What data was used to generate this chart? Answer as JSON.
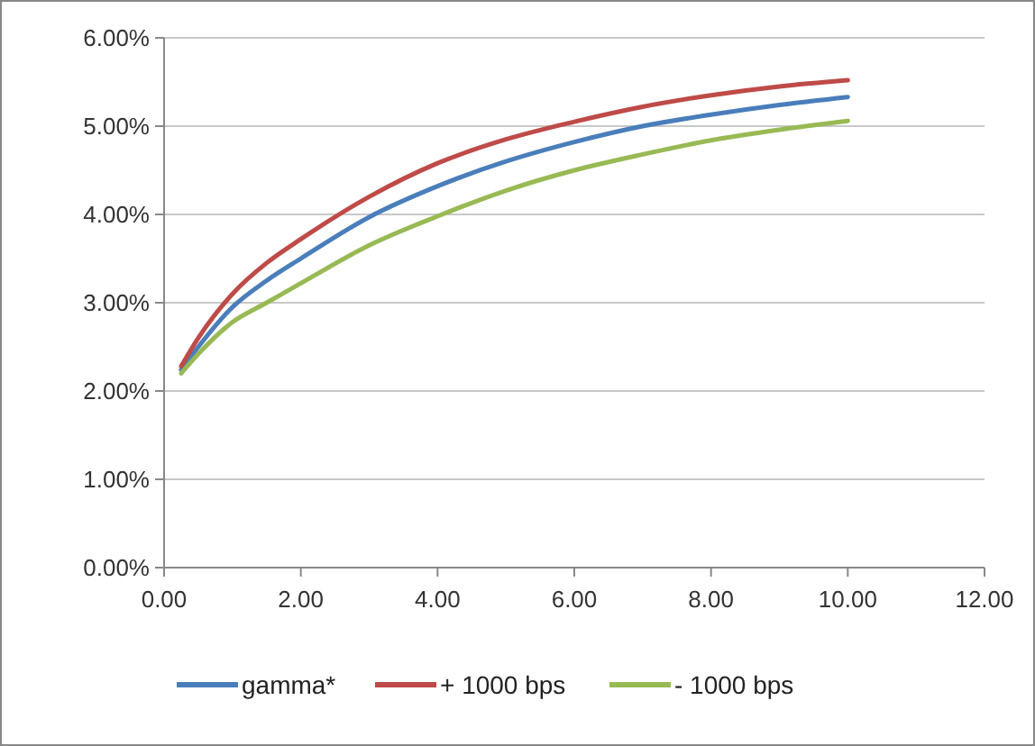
{
  "chart_data": {
    "type": "line",
    "x": [
      0.25,
      0.5,
      1,
      1.5,
      2,
      3,
      4,
      5,
      6,
      7,
      8,
      9,
      10
    ],
    "series": [
      {
        "name": "gamma*",
        "color": "#4a7ebb",
        "values": [
          2.24,
          2.5,
          2.95,
          3.25,
          3.5,
          3.97,
          4.32,
          4.6,
          4.82,
          5.0,
          5.13,
          5.24,
          5.33
        ]
      },
      {
        "name": "+ 1000 bps",
        "color": "#be4b48",
        "values": [
          2.28,
          2.6,
          3.1,
          3.45,
          3.72,
          4.2,
          4.58,
          4.85,
          5.05,
          5.22,
          5.35,
          5.45,
          5.52
        ]
      },
      {
        "name": "- 1000 bps",
        "color": "#98b954",
        "values": [
          2.2,
          2.42,
          2.78,
          3.0,
          3.22,
          3.65,
          3.98,
          4.27,
          4.5,
          4.68,
          4.84,
          4.96,
          5.06
        ]
      }
    ],
    "xlim": [
      0,
      12
    ],
    "xticks": [
      {
        "value": 0,
        "label": "0.00"
      },
      {
        "value": 2,
        "label": "2.00"
      },
      {
        "value": 4,
        "label": "4.00"
      },
      {
        "value": 6,
        "label": "6.00"
      },
      {
        "value": 8,
        "label": "8.00"
      },
      {
        "value": 10,
        "label": "10.00"
      },
      {
        "value": 12,
        "label": "12.00"
      }
    ],
    "ylim": [
      0,
      6
    ],
    "yticks": [
      {
        "value": 0,
        "label": "0.00%"
      },
      {
        "value": 1,
        "label": "1.00%"
      },
      {
        "value": 2,
        "label": "2.00%"
      },
      {
        "value": 3,
        "label": "3.00%"
      },
      {
        "value": 4,
        "label": "4.00%"
      },
      {
        "value": 5,
        "label": "5.00%"
      },
      {
        "value": 6,
        "label": "6.00%"
      }
    ],
    "grid": "y",
    "legend": "bottom",
    "marker": "none",
    "line_style": "solid"
  }
}
